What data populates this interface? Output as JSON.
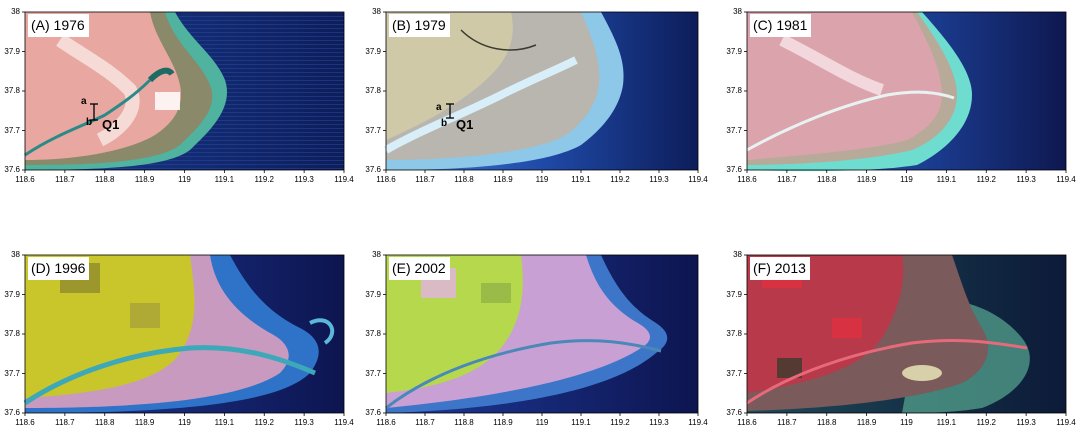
{
  "extent": {
    "lon_min": 118.6,
    "lon_max": 119.4,
    "lat_min": 37.6,
    "lat_max": 38.0
  },
  "x_ticks": [
    "118.6",
    "118.7",
    "118.8",
    "118.9",
    "119",
    "119.1",
    "119.2",
    "119.3",
    "119.4"
  ],
  "y_ticks": [
    "38",
    "37.9",
    "37.8",
    "37.7",
    "37.6"
  ],
  "panels": [
    {
      "id": "A",
      "label": "(A) 1976",
      "style": "false-color-red",
      "annotations": {
        "a": "a",
        "b": "b",
        "section": "Q1"
      }
    },
    {
      "id": "B",
      "label": "(B) 1979",
      "style": "natural-gray",
      "annotations": {
        "a": "a",
        "b": "b",
        "section": "Q1"
      }
    },
    {
      "id": "C",
      "label": "(C) 1981",
      "style": "false-color-red-light"
    },
    {
      "id": "D",
      "label": "(D) 1996",
      "style": "yellow-green-composite"
    },
    {
      "id": "E",
      "label": "(E) 2002",
      "style": "pink-green-composite"
    },
    {
      "id": "F",
      "label": "(F) 2013",
      "style": "false-color-red-dark"
    }
  ]
}
